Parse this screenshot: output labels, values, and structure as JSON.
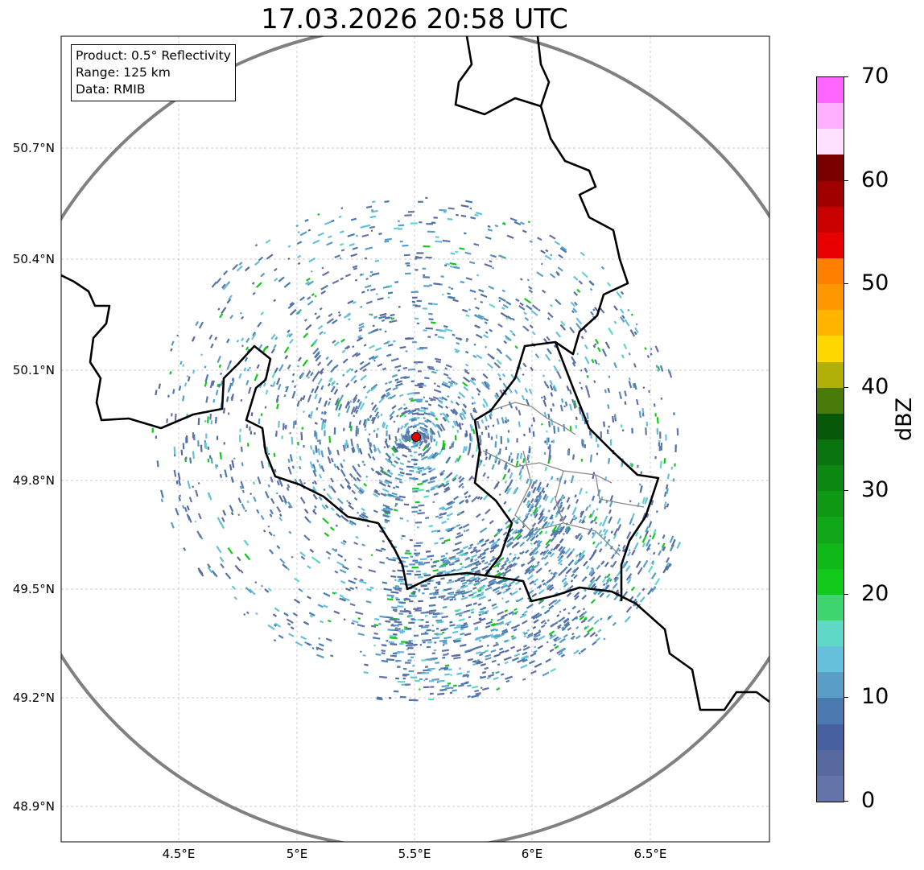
{
  "title": "17.03.2026 20:58 UTC",
  "infobox": {
    "product": "Product: 0.5° Reflectivity",
    "range": "Range: 125 km",
    "data": "Data: RMIB"
  },
  "map": {
    "lat_ticks": [
      "50.7°N",
      "50.4°N",
      "50.1°N",
      "49.8°N",
      "49.5°N",
      "49.2°N",
      "48.9°N"
    ],
    "lon_ticks": [
      "4.5°E",
      "5°E",
      "5.5°E",
      "6°E",
      "6.5°E"
    ],
    "radar_site": {
      "lon": 5.505,
      "lat": 49.914,
      "color": "#e00000"
    },
    "range_km": 125
  },
  "colorbar": {
    "label": "dBZ",
    "ticks": [
      "0",
      "10",
      "20",
      "30",
      "40",
      "50",
      "60",
      "70"
    ],
    "step_dbz": 2.5,
    "colors": [
      "#6574a8",
      "#5869a0",
      "#4660a0",
      "#4a7ab0",
      "#5a9ec8",
      "#66c0dc",
      "#60d8c8",
      "#3ed46e",
      "#12c81a",
      "#10b81a",
      "#10a818",
      "#0f9814",
      "#0c8812",
      "#0a7410",
      "#08580a",
      "#4a7a0a",
      "#b0b008",
      "#ffd800",
      "#ffb400",
      "#ff9800",
      "#ff8000",
      "#e80000",
      "#c80000",
      "#a00000",
      "#780000",
      "#ffe0ff",
      "#ffb0ff",
      "#ff66ff",
      "#e838e8"
    ]
  }
}
